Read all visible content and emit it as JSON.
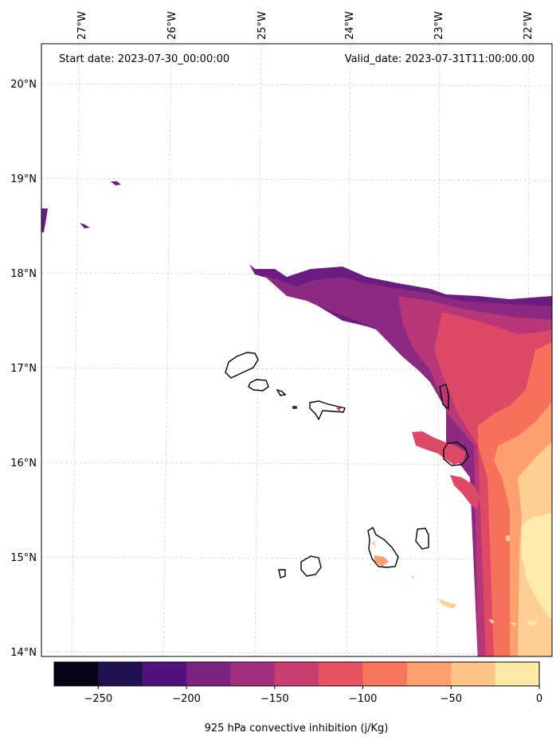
{
  "map": {
    "start_date": "Start date: 2023-07-30_00:00:00",
    "valid_date": "Valid_date: 2023-07-31T11:00:00.00",
    "lon_labels": [
      "27°W",
      "26°W",
      "25°W",
      "24°W",
      "23°W",
      "22°W"
    ],
    "lat_labels": [
      "20°N",
      "19°N",
      "18°N",
      "17°N",
      "16°N",
      "15°N",
      "14°N"
    ],
    "field_colors": {
      "-175_-150": "#8c2981",
      "-150_-125": "#b73779",
      "-125_-100": "#de4968",
      "-100_-75": "#f7705c",
      "-75_-50": "#fe9f6d",
      "-50_-25": "#fecf92",
      "-25_0": "#fcebab",
      "-200_-175": "#6a1c81"
    }
  },
  "colorbar": {
    "label": "925 hPa convective inhibition (j/Kg)",
    "ticks": [
      "−250",
      "−200",
      "−150",
      "−100",
      "−50",
      "0"
    ],
    "min": -275,
    "max": 0,
    "tick_values": [
      -250,
      -200,
      -150,
      -100,
      -50,
      0
    ],
    "levels": [
      -275,
      -250,
      -225,
      -200,
      -175,
      -150,
      -125,
      -100,
      -75,
      -50,
      -25,
      0
    ],
    "colors": [
      "#050416",
      "#221150",
      "#51127c",
      "#7c2382",
      "#a3307e",
      "#c83e73",
      "#e75263",
      "#f8765c",
      "#fe9f6d",
      "#fec488",
      "#fce9a8"
    ]
  }
}
